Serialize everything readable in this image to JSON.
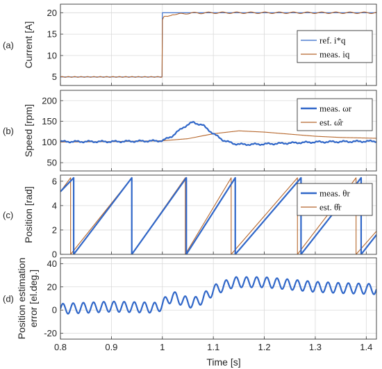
{
  "figure": {
    "xlabel": "Time [s]",
    "xlim": [
      0.8,
      1.42
    ],
    "xticks": [
      "0.8",
      "0.9",
      "1",
      "1.1",
      "1.2",
      "1.3",
      "1.4"
    ],
    "colors": {
      "series1": "#2f66c8",
      "series2": "#b5652a",
      "grid": "#d9d9d9"
    }
  },
  "chart_data": [
    {
      "type": "line",
      "panel_label": "(a)",
      "ylabel": "Current [A]",
      "ylim": [
        3,
        22
      ],
      "yticks": [
        "5",
        "10",
        "15",
        "20"
      ],
      "grid": true,
      "legend_position": "right",
      "series": [
        {
          "name": "ref. i_q*",
          "legend_text": "ref. i*q",
          "x": [
            0.8,
            0.9995,
            1.0,
            1.42
          ],
          "y": [
            5,
            5,
            20,
            20
          ]
        },
        {
          "name": "meas. i_q",
          "legend_text": "meas. iq",
          "x": [
            0.8,
            0.85,
            0.9,
            0.95,
            0.9995,
            1.0,
            1.003,
            1.01,
            1.02,
            1.03,
            1.05,
            1.1,
            1.2,
            1.3,
            1.42
          ],
          "y": [
            5,
            5,
            5,
            5,
            5,
            18.3,
            19.0,
            19.0,
            19.7,
            19.6,
            19.9,
            20,
            20,
            20,
            20
          ]
        }
      ]
    },
    {
      "type": "line",
      "panel_label": "(b)",
      "ylabel": "Speed [rpm]",
      "ylim": [
        30,
        225
      ],
      "yticks": [
        "50",
        "100",
        "150",
        "200"
      ],
      "grid": true,
      "legend_position": "top-right",
      "series": [
        {
          "name": "meas. ω_r",
          "legend_text": "meas. ωr",
          "x": [
            0.8,
            0.9,
            1.0,
            1.02,
            1.04,
            1.06,
            1.08,
            1.1,
            1.12,
            1.14,
            1.16,
            1.2,
            1.3,
            1.42
          ],
          "y": [
            101,
            101,
            103,
            115,
            135,
            148,
            140,
            120,
            104,
            96,
            94,
            95,
            100,
            102
          ]
        },
        {
          "name": "est. ω̂_r",
          "legend_text": "est. ω̂r",
          "x": [
            0.8,
            0.9,
            1.0,
            1.05,
            1.1,
            1.15,
            1.2,
            1.25,
            1.3,
            1.35,
            1.42
          ],
          "y": [
            100,
            101,
            103,
            108,
            120,
            127,
            124,
            119,
            114,
            111,
            109
          ]
        }
      ]
    },
    {
      "type": "line",
      "panel_label": "(c)",
      "ylabel": "Position [rad]",
      "ylim": [
        0,
        6.5
      ],
      "yticks": [
        "0",
        "2",
        "4",
        "6"
      ],
      "grid": true,
      "legend_position": "top-right",
      "series": [
        {
          "name": "meas. θ_r",
          "legend_text": "meas. θr",
          "x": [
            0.8,
            0.826,
            0.826,
            0.94,
            0.94,
            1.047,
            1.047,
            1.143,
            1.143,
            1.272,
            1.272,
            1.39,
            1.39,
            1.42
          ],
          "y": [
            5.15,
            6.28,
            0,
            6.28,
            0,
            6.28,
            0,
            6.28,
            0,
            6.28,
            0,
            6.28,
            0,
            1.6
          ]
        },
        {
          "name": "est. θ̂_r",
          "legend_text": "est. θ̂r",
          "x": [
            0.8,
            0.82,
            0.82,
            0.94,
            0.94,
            1.045,
            1.045,
            1.135,
            1.135,
            1.265,
            1.265,
            1.38,
            1.38,
            1.42
          ],
          "y": [
            5.15,
            6.28,
            0,
            6.28,
            0,
            6.28,
            0,
            6.28,
            0,
            6.28,
            0,
            6.28,
            0,
            1.9
          ]
        }
      ]
    },
    {
      "type": "line",
      "panel_label": "(d)",
      "ylabel": "Position estimation error [el.deg.]",
      "ylabel_lines": [
        "Position estimation",
        "error [el.deg.]"
      ],
      "ylim": [
        -25,
        45
      ],
      "yticks": [
        "-20",
        "0",
        "20",
        "40"
      ],
      "grid": true,
      "series": [
        {
          "name": "error",
          "x": [
            0.8,
            0.9,
            0.99,
            1.0,
            1.02,
            1.04,
            1.06,
            1.08,
            1.1,
            1.14,
            1.2,
            1.25,
            1.3,
            1.35,
            1.42
          ],
          "y": [
            1,
            3,
            2,
            5,
            12,
            8,
            6,
            10,
            17,
            24,
            24,
            22,
            20,
            19,
            18
          ]
        }
      ]
    }
  ]
}
